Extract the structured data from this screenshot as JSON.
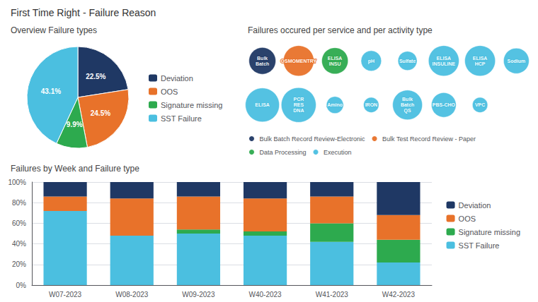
{
  "title": "First Time Right - Failure Reason",
  "chart_data": [
    {
      "type": "pie",
      "title": "Overview Failure types",
      "categories": [
        "Deviation",
        "OOS",
        "Signature missing",
        "SST Failure"
      ],
      "values": [
        22.5,
        24.5,
        9.9,
        43.1
      ],
      "value_labels": [
        "22.5%",
        "24.5%",
        "9.9%",
        "43.1%"
      ],
      "colors": [
        "#1f3864",
        "#e8722a",
        "#2daa4e",
        "#4bbfe0"
      ],
      "data_labels": true,
      "legend": "right"
    },
    {
      "type": "bubble",
      "title": "Failures occured per service and per activity type",
      "series": [
        {
          "name": "Bulk Batch Record Review-Electronic",
          "color": "#1f3864",
          "labels": [
            "Bulk Batch"
          ],
          "sizes": [
            0.063
          ]
        },
        {
          "name": "Bulk Test Record Review - Paper",
          "color": "#e8722a",
          "labels": [
            "OSMOMENTRY"
          ],
          "sizes": [
            0.072
          ]
        },
        {
          "name": "Data Processing",
          "color": "#2daa4e",
          "labels": [
            "ELISA INSU"
          ],
          "sizes": [
            0.062
          ]
        },
        {
          "name": "Execution",
          "color": "#4bbfe0",
          "labels": [
            "pH",
            "Sulfate",
            "ELISA INSULINE",
            "ELISA HCP",
            "Sodium",
            "ELISA",
            "PCR RES DNA",
            "Amino",
            "IRON",
            "Bulk Batch QS",
            "PBS-CHO",
            "VPC"
          ],
          "sizes": [
            0.048,
            0.045,
            0.072,
            0.072,
            0.06,
            0.08,
            0.082,
            0.04,
            0.036,
            0.07,
            0.058,
            0.036
          ]
        }
      ],
      "legend": "bottom"
    },
    {
      "type": "bar",
      "title": "Failures by Week and Failure type",
      "stacked": true,
      "categories": [
        "W07-2023",
        "W08-2023",
        "W09-2023",
        "W40-2023",
        "W41-2023",
        "W42-2023"
      ],
      "series": [
        {
          "name": "SST Failure",
          "color": "#4bbfe0",
          "values": [
            0.72,
            0.48,
            0.5,
            0.48,
            0.42,
            0.22
          ]
        },
        {
          "name": "Signature missing",
          "color": "#2daa4e",
          "values": [
            0.0,
            0.0,
            0.04,
            0.04,
            0.18,
            0.22
          ]
        },
        {
          "name": "OOS",
          "color": "#e8722a",
          "values": [
            0.14,
            0.36,
            0.32,
            0.32,
            0.26,
            0.24
          ]
        },
        {
          "name": "Deviation",
          "color": "#1f3864",
          "values": [
            0.14,
            0.16,
            0.14,
            0.16,
            0.14,
            0.32
          ]
        }
      ],
      "ylim": [
        0,
        1.0
      ],
      "yticks": [
        {
          "value": 0,
          "label": "0%"
        },
        {
          "value": 0.2,
          "label": "20%"
        },
        {
          "value": 0.4,
          "label": "40%"
        },
        {
          "value": 0.6,
          "label": "60%"
        },
        {
          "value": 0.8,
          "label": "80%"
        },
        {
          "value": 1.0,
          "label": "100%"
        }
      ],
      "grid": true,
      "legend": "right"
    }
  ]
}
